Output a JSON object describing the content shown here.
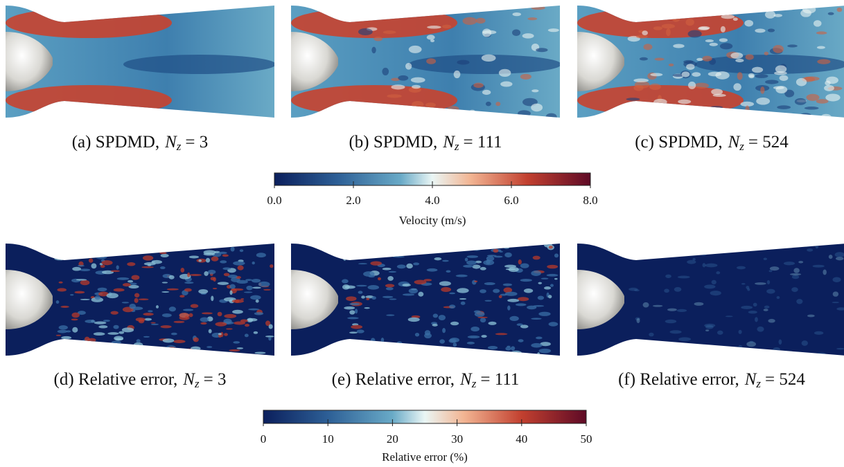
{
  "panels": [
    {
      "caption": {
        "label": "(a) SPDMD,",
        "var": "N",
        "sub": "z",
        "eq": "= 3"
      }
    },
    {
      "caption": {
        "label": "(b) SPDMD,",
        "var": "N",
        "sub": "z",
        "eq": "= 111"
      }
    },
    {
      "caption": {
        "label": "(c) SPDMD,",
        "var": "N",
        "sub": "z",
        "eq": "= 524"
      }
    },
    {
      "caption": {
        "label": "(d) Relative error,",
        "var": "N",
        "sub": "z",
        "eq": "= 3"
      }
    },
    {
      "caption": {
        "label": "(e) Relative error,",
        "var": "N",
        "sub": "z",
        "eq": "= 111"
      }
    },
    {
      "caption": {
        "label": "(f) Relative error,",
        "var": "N",
        "sub": "z",
        "eq": "= 524"
      }
    }
  ],
  "colorbars": [
    {
      "label": "Velocity (m/s)",
      "lim": [
        0,
        8
      ],
      "ticks": [
        {
          "value": 0,
          "label": "0.0"
        },
        {
          "value": 2,
          "label": "2.0"
        },
        {
          "value": 4,
          "label": "4.0"
        },
        {
          "value": 6,
          "label": "6.0"
        },
        {
          "value": 8,
          "label": "8.0"
        }
      ]
    },
    {
      "label": "Relative error (%)",
      "lim": [
        0,
        50
      ],
      "ticks": [
        0,
        10,
        20,
        30,
        40,
        50
      ]
    }
  ]
}
